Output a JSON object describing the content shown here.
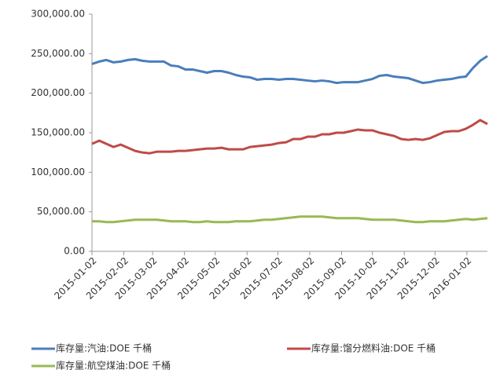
{
  "chart_data": {
    "type": "line",
    "x": [
      "2015-01-02",
      "2015-01-09",
      "2015-01-16",
      "2015-01-23",
      "2015-01-30",
      "2015-02-06",
      "2015-02-13",
      "2015-02-20",
      "2015-02-27",
      "2015-03-06",
      "2015-03-13",
      "2015-03-20",
      "2015-03-27",
      "2015-04-03",
      "2015-04-10",
      "2015-04-17",
      "2015-04-24",
      "2015-05-01",
      "2015-05-08",
      "2015-05-15",
      "2015-05-22",
      "2015-05-29",
      "2015-06-05",
      "2015-06-12",
      "2015-06-19",
      "2015-06-26",
      "2015-07-03",
      "2015-07-10",
      "2015-07-17",
      "2015-07-24",
      "2015-07-31",
      "2015-08-07",
      "2015-08-14",
      "2015-08-21",
      "2015-08-28",
      "2015-09-04",
      "2015-09-11",
      "2015-09-18",
      "2015-09-25",
      "2015-10-02",
      "2015-10-09",
      "2015-10-16",
      "2015-10-23",
      "2015-10-30",
      "2015-11-06",
      "2015-11-13",
      "2015-11-20",
      "2015-11-27",
      "2015-12-04",
      "2015-12-11",
      "2015-12-18",
      "2015-12-25",
      "2016-01-01",
      "2016-01-08",
      "2016-01-15",
      "2016-01-22"
    ],
    "series": [
      {
        "name": "库存量:汽油:DOE 千桶",
        "color": "#4a7ebb",
        "values": [
          237000,
          240000,
          242000,
          239000,
          240000,
          242000,
          243000,
          241000,
          240000,
          240000,
          240000,
          235000,
          234000,
          230000,
          230000,
          228000,
          226000,
          228000,
          228000,
          226000,
          223000,
          221000,
          220000,
          217000,
          218000,
          218000,
          217000,
          218000,
          218000,
          217000,
          216000,
          215000,
          216000,
          215000,
          213000,
          214000,
          214000,
          214000,
          216000,
          218000,
          222000,
          223000,
          221000,
          220000,
          219000,
          216000,
          213000,
          214000,
          216000,
          217000,
          218000,
          220000,
          221000,
          232000,
          241000,
          247000
        ]
      },
      {
        "name": "库存量:馏分燃料油:DOE 千桶",
        "color": "#be4b48",
        "values": [
          136000,
          140000,
          136000,
          132000,
          135000,
          131000,
          127000,
          125000,
          124000,
          126000,
          126000,
          126000,
          127000,
          127000,
          128000,
          129000,
          130000,
          130000,
          131000,
          129000,
          129000,
          129000,
          132000,
          133000,
          134000,
          135000,
          137000,
          138000,
          142000,
          142000,
          145000,
          145000,
          148000,
          148000,
          150000,
          150000,
          152000,
          154000,
          153000,
          153000,
          150000,
          148000,
          146000,
          142000,
          141000,
          142000,
          141000,
          143000,
          147000,
          151000,
          152000,
          152000,
          155000,
          160000,
          166000,
          161000
        ]
      },
      {
        "name": "库存量:航空煤油:DOE 千桶",
        "color": "#98b954",
        "values": [
          38000,
          38000,
          37000,
          37000,
          38000,
          39000,
          40000,
          40000,
          40000,
          40000,
          39000,
          38000,
          38000,
          38000,
          37000,
          37000,
          38000,
          37000,
          37000,
          37000,
          38000,
          38000,
          38000,
          39000,
          40000,
          40000,
          41000,
          42000,
          43000,
          44000,
          44000,
          44000,
          44000,
          43000,
          42000,
          42000,
          42000,
          42000,
          41000,
          40000,
          40000,
          40000,
          40000,
          39000,
          38000,
          37000,
          37000,
          38000,
          38000,
          38000,
          39000,
          40000,
          41000,
          40000,
          41000,
          42000
        ]
      }
    ],
    "xlim": [
      "2015-01-02",
      "2016-01-22"
    ],
    "xticks": [
      "2015-01-02",
      "2015-02-02",
      "2015-03-02",
      "2015-04-02",
      "2015-05-02",
      "2015-06-02",
      "2015-07-02",
      "2015-08-02",
      "2015-09-02",
      "2015-10-02",
      "2015-11-02",
      "2015-12-02",
      "2016-01-02"
    ],
    "ylim": [
      0,
      300000
    ],
    "yticks": [
      {
        "value": 0,
        "label": "0.00"
      },
      {
        "value": 50000,
        "label": "50,000.00"
      },
      {
        "value": 100000,
        "label": "100,000.00"
      },
      {
        "value": 150000,
        "label": "150,000.00"
      },
      {
        "value": 200000,
        "label": "200,000.00"
      },
      {
        "value": 250000,
        "label": "250,000.00"
      },
      {
        "value": 300000,
        "label": "300,000.00"
      }
    ],
    "grid": false
  }
}
